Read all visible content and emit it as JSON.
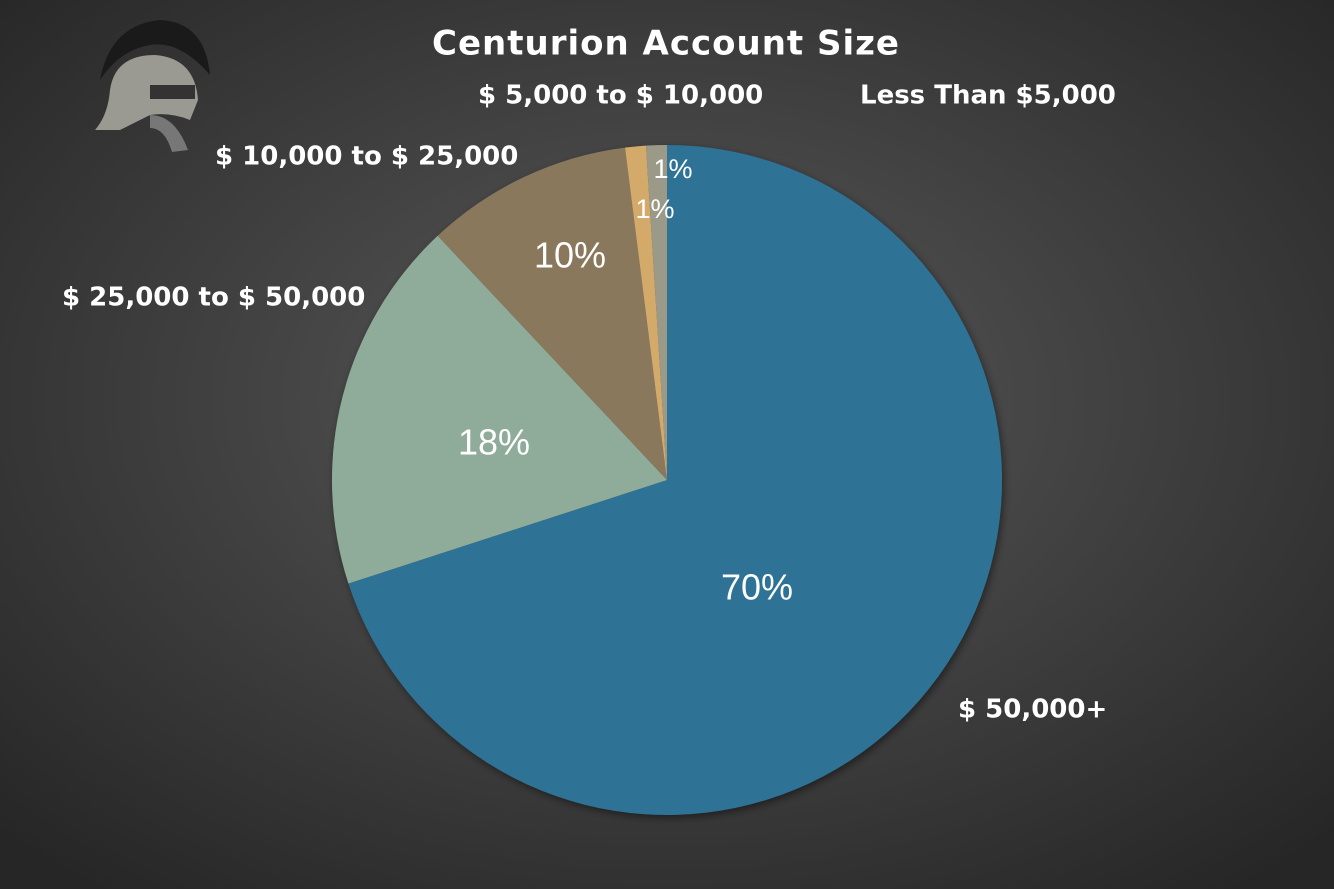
{
  "chart_data": {
    "type": "pie",
    "title": "Centurion Account Size",
    "categories": [
      "$ 50,000+",
      "$ 25,000 to $ 50,000",
      "$ 10,000 to $ 25,000",
      "$ 5,000 to $ 10,000",
      "Less Than $5,000"
    ],
    "values": [
      70,
      18,
      10,
      1,
      1
    ],
    "value_labels": [
      "70%",
      "18%",
      "10%",
      "1%",
      "1%"
    ],
    "colors": [
      "#2e7296",
      "#8fac9a",
      "#8a785c",
      "#d4aa6a",
      "#9b9a88"
    ]
  }
}
